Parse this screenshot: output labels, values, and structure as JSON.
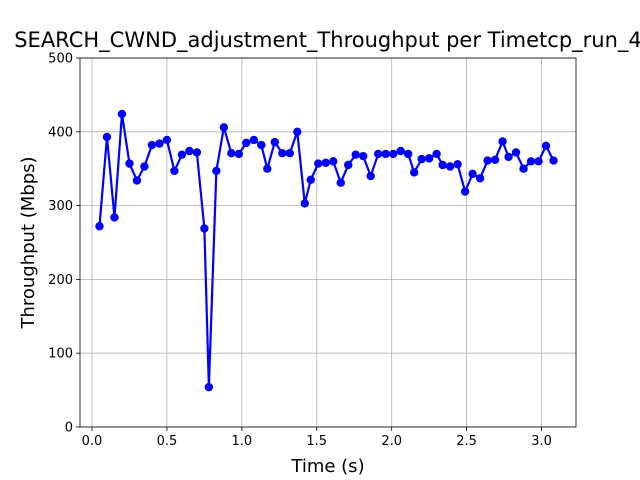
{
  "chart_data": {
    "type": "line",
    "title": "SEARCH_CWND_adjustment_Throughput per Timetcp_run_4",
    "xlabel": "Time (s)",
    "ylabel": "Throughput (Mbps)",
    "xlim": [
      -0.08,
      3.23
    ],
    "ylim": [
      0,
      500
    ],
    "xticks": [
      0.0,
      0.5,
      1.0,
      1.5,
      2.0,
      2.5,
      3.0
    ],
    "xtick_labels": [
      "0.0",
      "0.5",
      "1.0",
      "1.5",
      "2.0",
      "2.5",
      "3.0"
    ],
    "yticks": [
      0,
      100,
      200,
      300,
      400,
      500
    ],
    "ytick_labels": [
      "0",
      "100",
      "200",
      "300",
      "400",
      "500"
    ],
    "grid": true,
    "series": [
      {
        "color": "#0000ff",
        "marker": "circle",
        "x": [
          0.05,
          0.1,
          0.15,
          0.2,
          0.25,
          0.3,
          0.35,
          0.4,
          0.45,
          0.5,
          0.55,
          0.6,
          0.65,
          0.7,
          0.75,
          0.78,
          0.83,
          0.88,
          0.93,
          0.98,
          1.03,
          1.08,
          1.13,
          1.17,
          1.22,
          1.27,
          1.32,
          1.37,
          1.42,
          1.46,
          1.51,
          1.56,
          1.61,
          1.66,
          1.71,
          1.76,
          1.81,
          1.86,
          1.91,
          1.96,
          2.01,
          2.06,
          2.11,
          2.15,
          2.2,
          2.25,
          2.3,
          2.34,
          2.39,
          2.44,
          2.49,
          2.54,
          2.59,
          2.64,
          2.69,
          2.74,
          2.78,
          2.83,
          2.88,
          2.93,
          2.98,
          3.03,
          3.08
        ],
        "y": [
          272,
          393,
          284,
          424,
          357,
          334,
          353,
          382,
          384,
          389,
          347,
          369,
          374,
          372,
          269,
          54,
          347,
          406,
          371,
          370,
          385,
          389,
          382,
          350,
          386,
          371,
          371,
          400,
          303,
          335,
          357,
          358,
          360,
          331,
          355,
          369,
          367,
          340,
          370,
          370,
          370,
          374,
          370,
          345,
          363,
          364,
          370,
          355,
          353,
          356,
          319,
          343,
          337,
          361,
          362,
          387,
          366,
          372,
          350,
          360,
          360,
          381,
          361
        ]
      }
    ]
  }
}
